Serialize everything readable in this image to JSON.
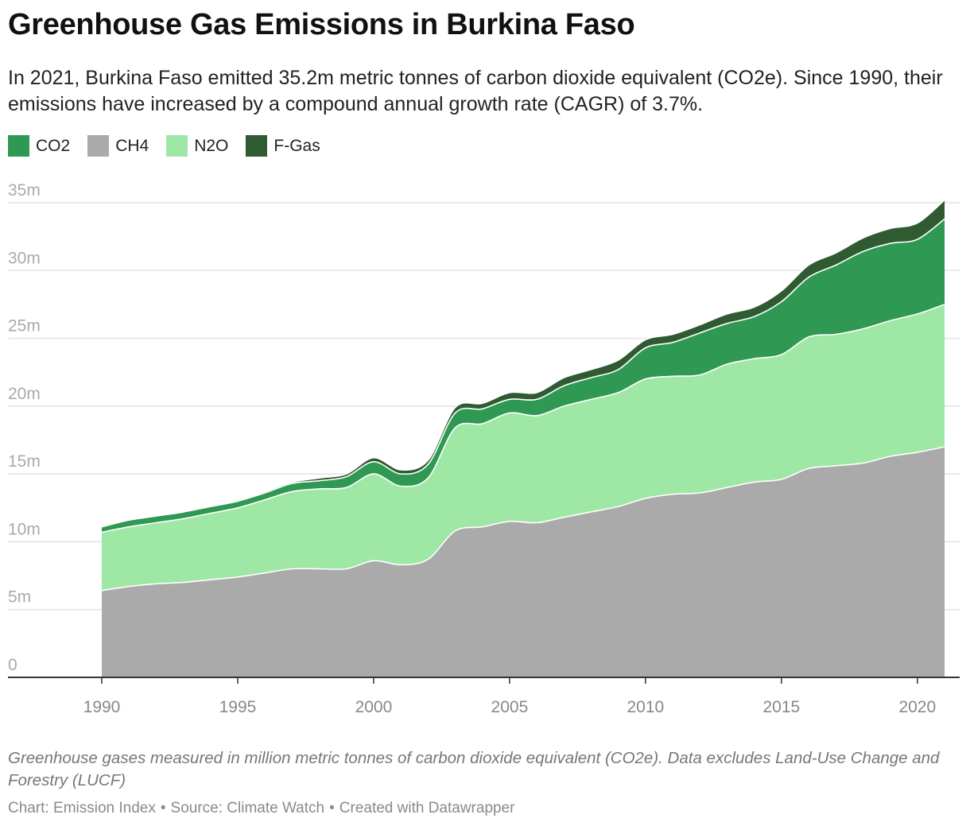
{
  "header": {
    "title": "Greenhouse Gas Emissions in Burkina Faso",
    "subtitle": "In 2021, Burkina Faso emitted 35.2m metric tonnes of carbon dioxide equivalent (CO2e). Since 1990, their emissions have increased by a compound annual growth rate (CAGR) of 3.7%."
  },
  "footer": {
    "notes": "Greenhouse gases measured in million metric tonnes of carbon dioxide equivalent (CO2e). Data excludes Land-Use Change and Forestry (LUCF)",
    "credit_chart": "Chart: Emission Index",
    "credit_source": "Source: Climate Watch",
    "credit_tool": "Created with Datawrapper",
    "separator": "•"
  },
  "chart_data": {
    "type": "area",
    "stacked": true,
    "x": [
      1990,
      1991,
      1992,
      1993,
      1994,
      1995,
      1996,
      1997,
      1998,
      1999,
      2000,
      2001,
      2002,
      2003,
      2004,
      2005,
      2006,
      2007,
      2008,
      2009,
      2010,
      2011,
      2012,
      2013,
      2014,
      2015,
      2016,
      2017,
      2018,
      2019,
      2020,
      2021
    ],
    "ylim": [
      0,
      35
    ],
    "y_ticks": [
      0,
      5,
      10,
      15,
      20,
      25,
      30,
      35
    ],
    "y_tick_labels": [
      "0",
      "5m",
      "10m",
      "15m",
      "20m",
      "25m",
      "30m",
      "35m"
    ],
    "x_ticks": [
      1990,
      1995,
      2000,
      2005,
      2010,
      2015,
      2020
    ],
    "x_tick_labels": [
      "1990",
      "1995",
      "2000",
      "2005",
      "2010",
      "2015",
      "2020"
    ],
    "grid": true,
    "legend_position": "top-left",
    "series": [
      {
        "name": "CH4",
        "color": "#aaaaaa",
        "values": [
          6.4,
          6.7,
          6.9,
          7.0,
          7.2,
          7.4,
          7.7,
          8.0,
          8.0,
          8.0,
          8.6,
          8.3,
          8.7,
          10.8,
          11.1,
          11.5,
          11.4,
          11.8,
          12.2,
          12.6,
          13.2,
          13.5,
          13.6,
          14.0,
          14.4,
          14.6,
          15.4,
          15.6,
          15.8,
          16.3,
          16.6,
          17.0
        ]
      },
      {
        "name": "N2O",
        "color": "#9ee7a4",
        "values": [
          4.3,
          4.4,
          4.5,
          4.7,
          4.9,
          5.1,
          5.4,
          5.7,
          5.9,
          6.0,
          6.4,
          5.8,
          6.0,
          7.6,
          7.6,
          8.0,
          7.9,
          8.2,
          8.3,
          8.4,
          8.8,
          8.7,
          8.7,
          9.1,
          9.1,
          9.2,
          9.7,
          9.7,
          9.9,
          10.0,
          10.2,
          10.5
        ]
      },
      {
        "name": "CO2",
        "color": "#2f9953",
        "values": [
          0.4,
          0.5,
          0.5,
          0.5,
          0.5,
          0.5,
          0.5,
          0.6,
          0.6,
          0.8,
          0.9,
          0.9,
          1.0,
          1.1,
          1.1,
          1.0,
          1.2,
          1.5,
          1.6,
          1.7,
          2.3,
          2.5,
          3.1,
          3.0,
          3.1,
          3.9,
          4.4,
          5.1,
          5.7,
          5.7,
          5.5,
          6.3
        ]
      },
      {
        "name": "F-Gas",
        "color": "#2f5a32",
        "values": [
          0.0,
          0.0,
          0.0,
          0.0,
          0.0,
          0.0,
          0.1,
          0.1,
          0.2,
          0.2,
          0.3,
          0.3,
          0.3,
          0.4,
          0.4,
          0.5,
          0.5,
          0.6,
          0.6,
          0.7,
          0.6,
          0.6,
          0.6,
          0.7,
          0.7,
          0.8,
          0.9,
          0.9,
          1.0,
          1.1,
          1.2,
          1.4
        ]
      }
    ]
  }
}
